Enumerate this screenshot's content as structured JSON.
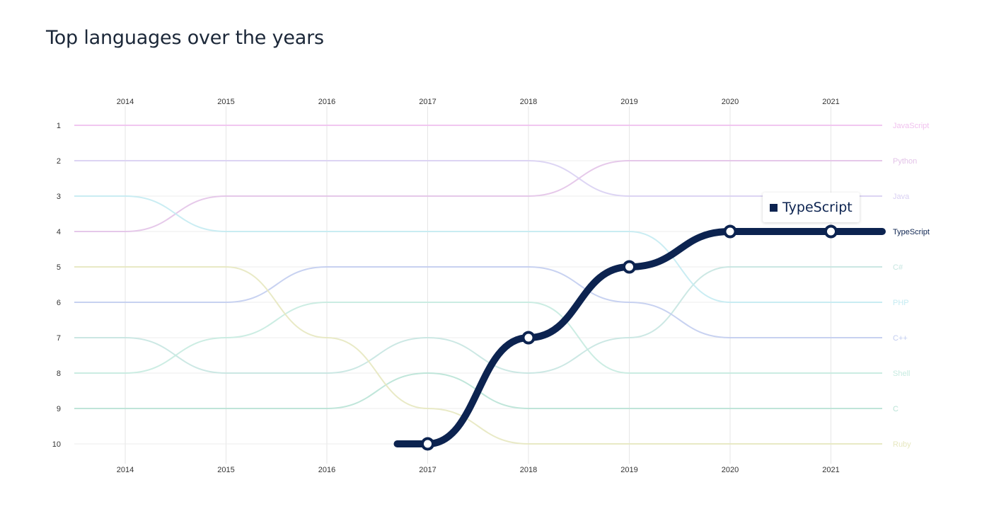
{
  "title": "Top languages over the years",
  "chart_data": {
    "type": "bump",
    "x": [
      "2014",
      "2015",
      "2016",
      "2017",
      "2018",
      "2019",
      "2020",
      "2021"
    ],
    "y_ticks": [
      "1",
      "2",
      "3",
      "4",
      "5",
      "6",
      "7",
      "8",
      "9",
      "10"
    ],
    "ylim": [
      1,
      10
    ],
    "y_inverted": true,
    "grid": true,
    "highlighted": "TypeScript",
    "series": [
      {
        "name": "JavaScript",
        "color": "#f1c2ef",
        "ranks": [
          1,
          1,
          1,
          1,
          1,
          1,
          1,
          1
        ]
      },
      {
        "name": "Python",
        "color": "#e3c3e8",
        "ranks": [
          4,
          3,
          3,
          3,
          3,
          2,
          2,
          2
        ]
      },
      {
        "name": "Java",
        "color": "#d9d0f3",
        "ranks": [
          2,
          2,
          2,
          2,
          2,
          3,
          3,
          3
        ]
      },
      {
        "name": "TypeScript",
        "color": "#0c2350",
        "ranks": [
          null,
          null,
          null,
          10,
          7,
          5,
          4,
          4
        ]
      },
      {
        "name": "C#",
        "color": "#c7e6e1",
        "ranks": [
          7,
          8,
          8,
          7,
          8,
          7,
          5,
          5
        ]
      },
      {
        "name": "PHP",
        "color": "#c4ebf2",
        "ranks": [
          3,
          4,
          4,
          4,
          4,
          4,
          6,
          6
        ]
      },
      {
        "name": "C++",
        "color": "#c2cdf0",
        "ranks": [
          6,
          6,
          5,
          5,
          5,
          6,
          7,
          7
        ]
      },
      {
        "name": "Shell",
        "color": "#c7ebe0",
        "ranks": [
          8,
          7,
          6,
          6,
          6,
          8,
          8,
          8
        ]
      },
      {
        "name": "C",
        "color": "#b9e3d6",
        "ranks": [
          9,
          9,
          9,
          8,
          9,
          9,
          9,
          9
        ]
      },
      {
        "name": "Ruby",
        "color": "#e7e8c0",
        "ranks": [
          5,
          5,
          7,
          9,
          10,
          10,
          10,
          10
        ]
      }
    ]
  }
}
